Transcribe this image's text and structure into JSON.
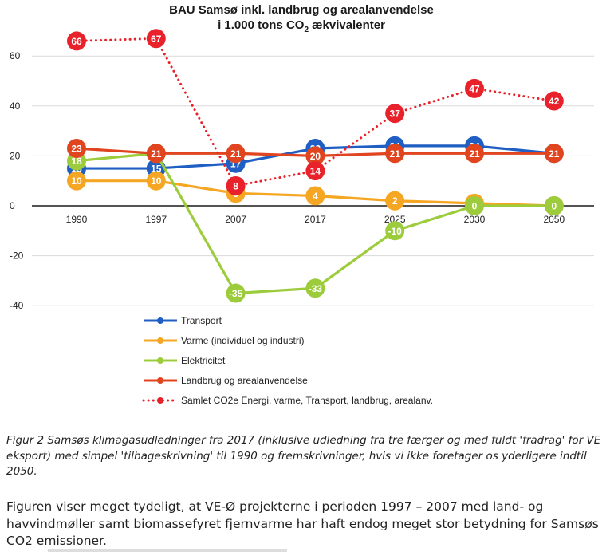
{
  "chart_data": {
    "type": "line",
    "title_line1": "BAU Samsø inkl. landbrug og arealanvendelse",
    "title_line2": "i 1.000 tons CO",
    "title_sub": "2",
    "title_line2_end": " ækvivalenter",
    "categories": [
      "1990",
      "1997",
      "2007",
      "2017",
      "2025",
      "2030",
      "2050"
    ],
    "ylim": [
      -45,
      72
    ],
    "yticks": [
      60,
      40,
      20,
      0,
      -20,
      -40
    ],
    "ytick_labels": [
      "60",
      "40",
      "20",
      "0",
      "-20",
      "-40"
    ],
    "grid": true,
    "series": [
      {
        "name": "Transport",
        "color": "#1f5fc4",
        "style": "solid",
        "values": [
          15,
          15,
          17,
          23,
          24,
          24,
          21
        ],
        "labels": [
          "15",
          "15",
          "17",
          "23",
          "24",
          "24",
          "21"
        ]
      },
      {
        "name": "Varme (individuel og industri)",
        "color": "#f5a623",
        "style": "solid",
        "values": [
          10,
          10,
          5,
          4,
          2,
          1,
          0
        ],
        "labels": [
          "10",
          "10",
          "5",
          "4",
          "2",
          "1",
          "0"
        ]
      },
      {
        "name": "Elektricitet",
        "color": "#9ccc3c",
        "style": "solid",
        "values": [
          18,
          21,
          -35,
          -33,
          -10,
          0,
          0
        ],
        "labels": [
          "18",
          "21",
          "-35",
          "-33",
          "-10",
          "0",
          "0"
        ]
      },
      {
        "name": "Landbrug og arealanvendelse",
        "color": "#e0451f",
        "style": "solid",
        "values": [
          23,
          21,
          21,
          20,
          21,
          21,
          21
        ],
        "labels": [
          "23",
          "21",
          "21",
          "20",
          "21",
          "21",
          "21"
        ]
      },
      {
        "name": "Samlet CO2e Energi, varme, Transport, landbrug, arealanv.",
        "color": "#e8212a",
        "style": "dotted",
        "values": [
          66,
          67,
          8,
          14,
          37,
          47,
          42
        ],
        "labels": [
          "66",
          "67",
          "8",
          "14",
          "37",
          "47",
          "42"
        ]
      }
    ]
  },
  "caption": "Figur 2 Samsøs klimagasudledninger fra 2017 (inklusive udledning fra tre færger og med fuldt 'fradrag' for VE eksport) med simpel 'tilbageskrivning' til 1990 og fremskrivninger, hvis vi ikke foretager os yderligere indtil 2050.",
  "body_text": "Figuren viser meget tydeligt, at VE-Ø projekterne i perioden 1997 – 2007 med land- og havvindmøller samt biomassefyret fjernvarme har haft endog meget stor betydning for Samsøs CO2 emissioner."
}
